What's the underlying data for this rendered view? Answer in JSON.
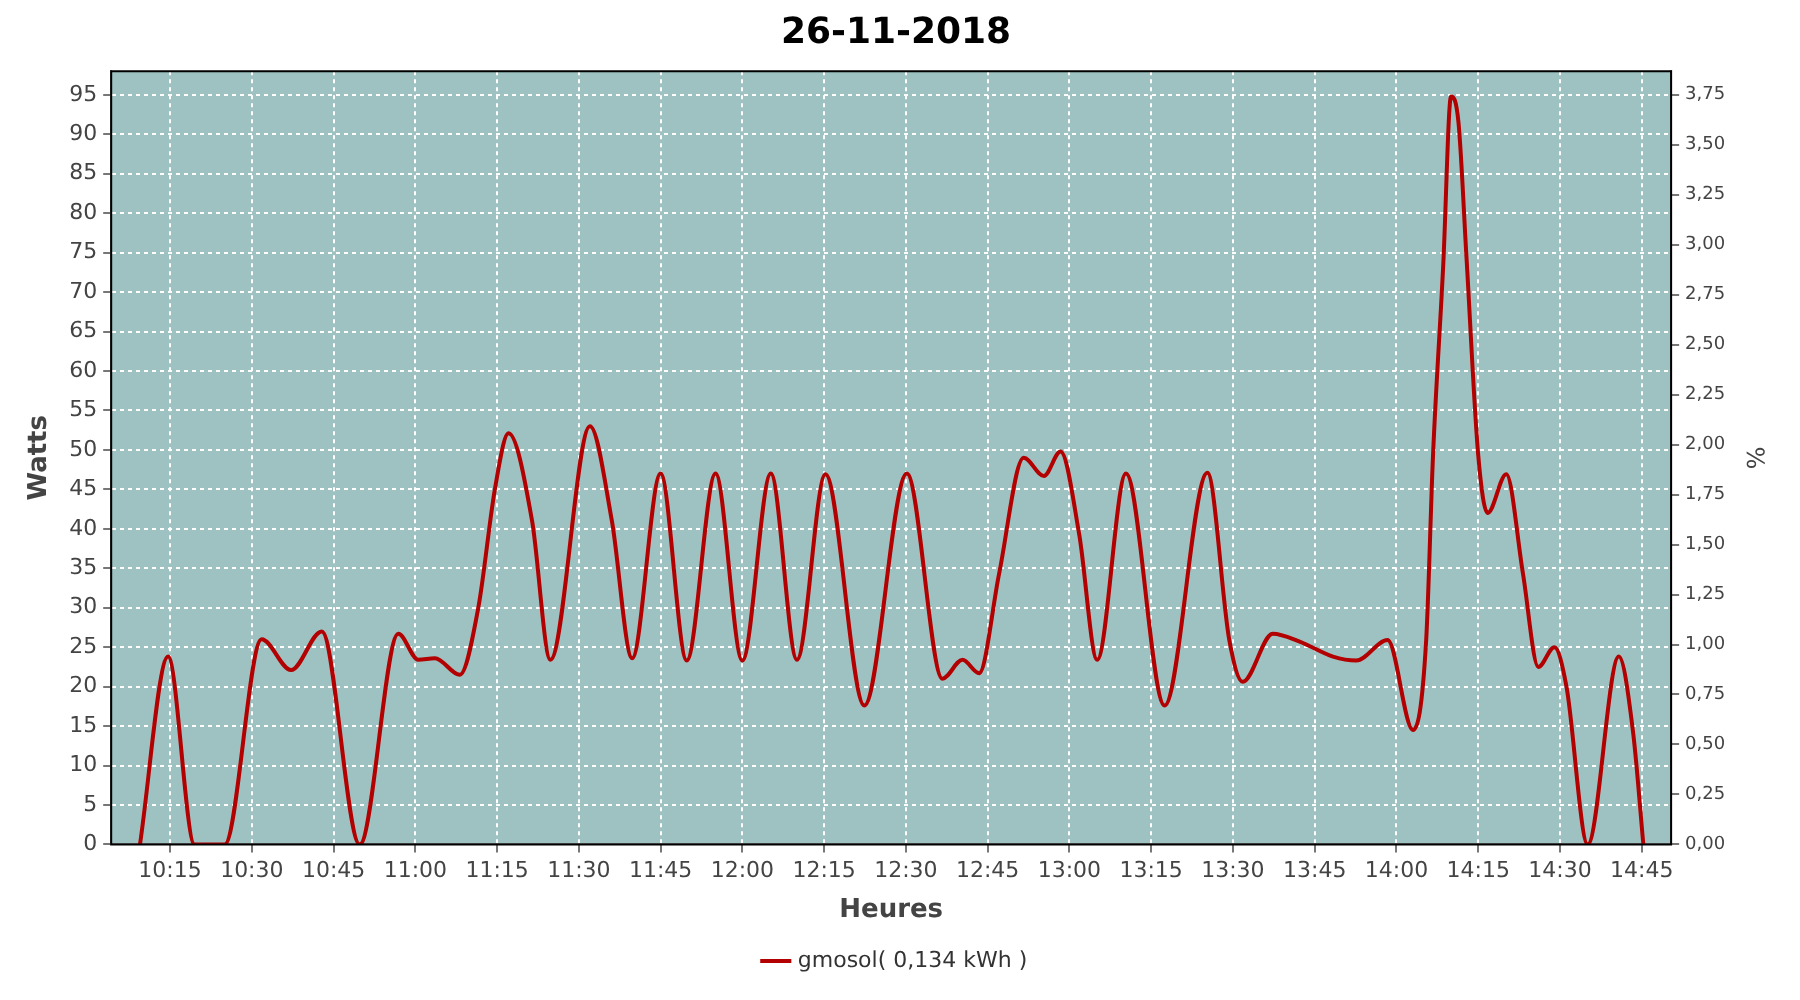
{
  "chart_data": {
    "type": "line",
    "title": "26-11-2018",
    "xlabel": "Heures",
    "ylabel": "Watts",
    "y2label": "%",
    "xlim": [
      10.07,
      14.84
    ],
    "xticks": [
      {
        "value": 10.25,
        "label": "10:15"
      },
      {
        "value": 10.5,
        "label": "10:30"
      },
      {
        "value": 10.75,
        "label": "10:45"
      },
      {
        "value": 11,
        "label": "11:00"
      },
      {
        "value": 11.25,
        "label": "11:15"
      },
      {
        "value": 11.5,
        "label": "11:30"
      },
      {
        "value": 11.75,
        "label": "11:45"
      },
      {
        "value": 12,
        "label": "12:00"
      },
      {
        "value": 12.25,
        "label": "12:15"
      },
      {
        "value": 12.5,
        "label": "12:30"
      },
      {
        "value": 12.75,
        "label": "12:45"
      },
      {
        "value": 13,
        "label": "13:00"
      },
      {
        "value": 13.25,
        "label": "13:15"
      },
      {
        "value": 13.5,
        "label": "13:30"
      },
      {
        "value": 13.75,
        "label": "13:45"
      },
      {
        "value": 14,
        "label": "14:00"
      },
      {
        "value": 14.25,
        "label": "14:15"
      },
      {
        "value": 14.5,
        "label": "14:30"
      },
      {
        "value": 14.75,
        "label": "14:45"
      }
    ],
    "ylim": [
      0,
      98
    ],
    "yticks": [
      0,
      5,
      10,
      15,
      20,
      25,
      30,
      35,
      40,
      45,
      50,
      55,
      60,
      65,
      70,
      75,
      80,
      85,
      90,
      95
    ],
    "y2lim": [
      0,
      3.868
    ],
    "y2ticks": [
      {
        "value": 0,
        "label": "0,00"
      },
      {
        "value": 0.25,
        "label": "0,25"
      },
      {
        "value": 0.5,
        "label": "0,50"
      },
      {
        "value": 0.75,
        "label": "0,75"
      },
      {
        "value": 1,
        "label": "1,00"
      },
      {
        "value": 1.25,
        "label": "1,25"
      },
      {
        "value": 1.5,
        "label": "1,50"
      },
      {
        "value": 1.75,
        "label": "1,75"
      },
      {
        "value": 2,
        "label": "2,00"
      },
      {
        "value": 2.25,
        "label": "2,25"
      },
      {
        "value": 2.5,
        "label": "2,50"
      },
      {
        "value": 2.75,
        "label": "2,75"
      },
      {
        "value": 3,
        "label": "3,00"
      },
      {
        "value": 3.25,
        "label": "3,25"
      },
      {
        "value": 3.5,
        "label": "3,50"
      },
      {
        "value": 3.75,
        "label": "3,75"
      }
    ],
    "grid": true,
    "legend": "bottom",
    "marker": "none",
    "line_style": "solid",
    "series": [
      {
        "name": "gmosol( 0,134 kWh )",
        "color": "#b30000",
        "x": [
          10.158,
          10.244,
          10.325,
          10.417,
          10.53,
          10.62,
          10.714,
          10.83,
          10.948,
          11.009,
          11.06,
          11.136,
          11.193,
          11.244,
          11.285,
          11.357,
          11.413,
          11.534,
          11.601,
          11.663,
          11.75,
          11.83,
          11.918,
          12.0,
          12.087,
          12.167,
          12.254,
          12.373,
          12.503,
          12.612,
          12.673,
          12.724,
          12.785,
          12.86,
          12.922,
          12.973,
          13.03,
          13.085,
          13.173,
          13.291,
          13.422,
          13.489,
          13.53,
          13.622,
          13.704,
          13.806,
          13.877,
          13.973,
          14.051,
          14.091,
          14.112,
          14.143,
          14.167,
          14.19,
          14.214,
          14.25,
          14.279,
          14.336,
          14.387,
          14.434,
          14.483,
          14.52,
          14.585,
          14.68,
          14.724,
          14.755
        ],
        "values": [
          0,
          23.8,
          0,
          0,
          26.0,
          22.1,
          27.0,
          0,
          26.7,
          23.4,
          23.6,
          21.5,
          30.1,
          45.2,
          52.1,
          41.0,
          23.4,
          53.0,
          41.0,
          23.6,
          47.0,
          23.3,
          47.0,
          23.3,
          47.0,
          23.4,
          46.9,
          17.6,
          47.0,
          21.0,
          23.4,
          21.7,
          34.3,
          49.0,
          46.7,
          49.8,
          39.3,
          23.4,
          47.0,
          17.6,
          47.1,
          25.9,
          20.6,
          26.7,
          25.7,
          23.8,
          23.3,
          25.9,
          14.5,
          25.9,
          49.4,
          73.3,
          94.8,
          91.4,
          74.6,
          49.4,
          42.0,
          46.9,
          34.3,
          22.5,
          25.0,
          20.0,
          0,
          23.8,
          14.1,
          0
        ]
      }
    ]
  }
}
